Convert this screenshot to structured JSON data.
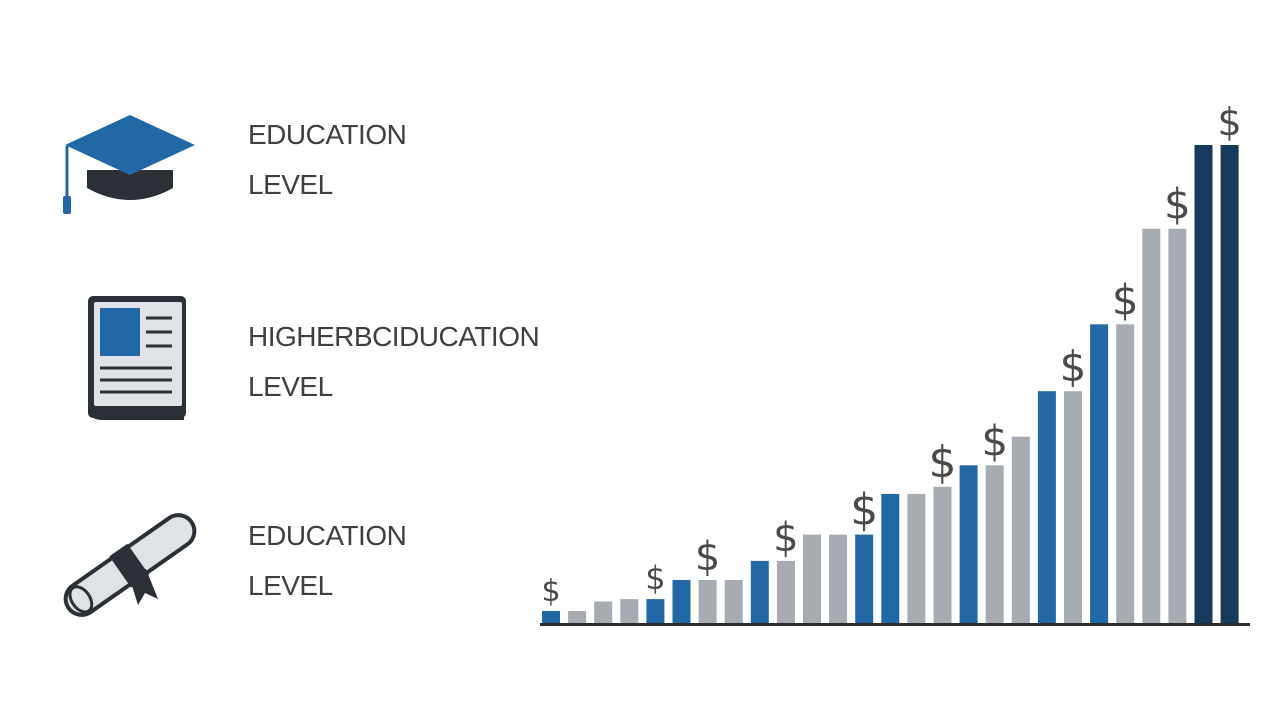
{
  "rows": [
    {
      "line1": "EDUCATION",
      "line2": "LEVEL",
      "icon": "graduation-cap-icon"
    },
    {
      "line1": "HIGHERBCIDUCATION",
      "line2": "LEVEL",
      "icon": "book-icon"
    },
    {
      "line1": "EDUCATION",
      "line2": "LEVEL",
      "icon": "diploma-scroll-icon"
    }
  ],
  "colors": {
    "blue": "#2169a6",
    "gray": "#a7acb2",
    "navy": "#153a5c",
    "axis": "#2b2b2b",
    "text": "#3f3f3f"
  },
  "chart_data": {
    "type": "bar",
    "title": "",
    "xlabel": "",
    "ylabel": "",
    "annotation": "$",
    "ylim": [
      0,
      100
    ],
    "bars": [
      {
        "value": 2.5,
        "color": "blue"
      },
      {
        "value": 2.5,
        "color": "gray"
      },
      {
        "value": 4.5,
        "color": "gray"
      },
      {
        "value": 5,
        "color": "gray"
      },
      {
        "value": 5,
        "color": "blue"
      },
      {
        "value": 9,
        "color": "blue"
      },
      {
        "value": 9,
        "color": "gray"
      },
      {
        "value": 9,
        "color": "gray"
      },
      {
        "value": 13,
        "color": "blue"
      },
      {
        "value": 13,
        "color": "gray"
      },
      {
        "value": 18.5,
        "color": "gray"
      },
      {
        "value": 18.5,
        "color": "gray"
      },
      {
        "value": 18.5,
        "color": "blue"
      },
      {
        "value": 27,
        "color": "blue"
      },
      {
        "value": 27,
        "color": "gray"
      },
      {
        "value": 28.5,
        "color": "gray"
      },
      {
        "value": 33,
        "color": "blue"
      },
      {
        "value": 33,
        "color": "gray"
      },
      {
        "value": 39,
        "color": "gray"
      },
      {
        "value": 48.5,
        "color": "blue"
      },
      {
        "value": 48.5,
        "color": "gray"
      },
      {
        "value": 62.5,
        "color": "blue"
      },
      {
        "value": 62.5,
        "color": "gray"
      },
      {
        "value": 82.5,
        "color": "gray"
      },
      {
        "value": 82.5,
        "color": "gray"
      },
      {
        "value": 100,
        "color": "navy"
      },
      {
        "value": 100,
        "color": "navy"
      }
    ],
    "dollar_marks": [
      {
        "bar": 0,
        "size": 30
      },
      {
        "bar": 4,
        "size": 32
      },
      {
        "bar": 6,
        "size": 40
      },
      {
        "bar": 9,
        "size": 40
      },
      {
        "bar": 12,
        "size": 44
      },
      {
        "bar": 15,
        "size": 44
      },
      {
        "bar": 17,
        "size": 42
      },
      {
        "bar": 20,
        "size": 42
      },
      {
        "bar": 22,
        "size": 42
      },
      {
        "bar": 24,
        "size": 42
      },
      {
        "bar": 26,
        "size": 38
      }
    ]
  }
}
